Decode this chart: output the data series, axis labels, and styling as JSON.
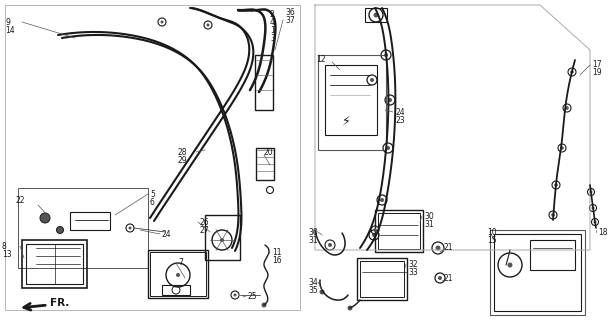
{
  "bg_color": "#ffffff",
  "line_color": "#1a1a1a",
  "gray": "#555555",
  "light_gray": "#aaaaaa",
  "figsize": [
    6.16,
    3.2
  ],
  "dpi": 100
}
